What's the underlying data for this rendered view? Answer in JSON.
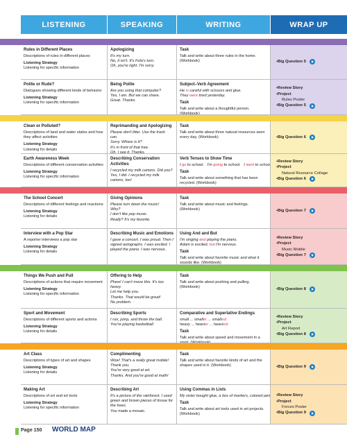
{
  "header": {
    "columns": [
      "LISTENING",
      "SPEAKING",
      "WRITING",
      "WRAP UP"
    ]
  },
  "units": [
    {
      "rows": [
        {
          "listening": {
            "title": "Rules in Different Places",
            "description": "Descriptions of rules in different places",
            "strategy_label": "Listening Strategy",
            "strategy": "Listening for specific information"
          },
          "speaking": {
            "title": "Apologizing",
            "lines": [
              "It's my turn.",
              "No, it isn't. It's Fola's turn.",
              "Oh, you're right. I'm sorry."
            ]
          },
          "writing": {
            "task_label": "Task",
            "task": "Talk and write about three rules in the home. (Workbook)"
          },
          "wrapup": {
            "big_question": "Big Question 5"
          }
        },
        {
          "listening": {
            "title": "Polite or Rude?",
            "description": "Dialogues showing different kinds of behavior",
            "strategy_label": "Listening Strategy",
            "strategy": "Listening for specific information"
          },
          "speaking": {
            "title": "Being Polite",
            "lines": [
              "Are you using that computer?",
              "Yes, I am. But we can share.",
              "Great. Thanks."
            ]
          },
          "writing": {
            "title": "Subject–Verb Agreement",
            "examples": [
              [
                "He ",
                "is",
                " careful with scissors and glue."
              ],
              [
                "They ",
                "were",
                " tired yesterday."
              ]
            ],
            "task_label": "Task",
            "task": "Talk and write about a thoughtful person. (Workbook)"
          },
          "wrapup": {
            "review": "Review Story",
            "project": "Project",
            "project_name": "Rules Poster",
            "big_question": "Big Question 5"
          }
        }
      ]
    },
    {
      "rows": [
        {
          "listening": {
            "title": "Clean or Polluted?",
            "description": "Descriptions of land and water states and how they affect activities",
            "strategy_label": "Listening Strategy",
            "strategy": "Listening for details"
          },
          "speaking": {
            "title": "Reprimanding and Apologizing",
            "lines": [
              "Please don't litter. Use the trash can.",
              "Sorry. Where is it?",
              "It's in front of that tree.",
              "Oh, I see it. Thanks."
            ]
          },
          "writing": {
            "task_label": "Task",
            "task": "Talk and write about three natural resources seen every day. (Workbook)"
          },
          "wrapup": {
            "big_question": "Big Question 6"
          }
        },
        {
          "listening": {
            "title": "Earth Awareness Week",
            "description": "Descriptions of different conservation activities",
            "strategy_label": "Listening Strategy",
            "strategy": "Listening for specific information"
          },
          "speaking": {
            "title": "Describing Conservation Activities",
            "lines": [
              "I recycled my milk cartons. Did you?",
              "Yes, I did. I recycled my milk cartons, too!"
            ]
          },
          "writing": {
            "title": "Verb Tenses to Show Time",
            "examples": [
              [
                "I ",
                "go",
                " to school.   I'm ",
                "going",
                " to school.   I ",
                "went",
                " to school."
              ]
            ],
            "task_label": "Task",
            "task": "Talk and write about something that has been recycled. (Workbook)"
          },
          "wrapup": {
            "review": "Review Story",
            "project": "Project",
            "project_name": "Natural Resource Collage",
            "big_question": "Big Question 6"
          }
        }
      ]
    },
    {
      "rows": [
        {
          "listening": {
            "title": "The School Concert",
            "description": "Descriptions of different feelings and reactions",
            "strategy_label": "Listening Strategy",
            "strategy": "Listening for details"
          },
          "speaking": {
            "title": "Giving Opinions",
            "lines": [
              "Please turn down the music!",
              "Why?",
              "I don't like pop music.",
              "Really? It's my favorite."
            ]
          },
          "writing": {
            "task_label": "Task",
            "task": "Talk and write about music and feelings. (Workbook)"
          },
          "wrapup": {
            "big_question": "Big Question 7"
          }
        },
        {
          "listening": {
            "title": "Interview with a Pop Star",
            "description": "A reporter interviews a pop star",
            "strategy_label": "Listening Strategy",
            "strategy": "Listening for details"
          },
          "speaking": {
            "title": "Describing Music and Emotions",
            "lines": [
              "I gave a concert. I was proud. Then I signed autographs. I was excited. I played the piano. I was nervous."
            ]
          },
          "writing": {
            "title": "Using And and But",
            "examples": [
              [
                "I'm singing ",
                "and",
                " playing the piano."
              ],
              [
                "Adam is excited, ",
                "but",
                " I'm nervous."
              ]
            ],
            "task_label": "Task",
            "task": "Talk and write about favorite music and what it sounds like. (Workbook)"
          },
          "wrapup": {
            "review": "Review Story",
            "project": "Project",
            "project_name": "Music Mobile",
            "big_question": "Big Question 7"
          }
        }
      ]
    },
    {
      "rows": [
        {
          "listening": {
            "title": "Things We Push and Pull",
            "description": "Descriptions of actions that require movement",
            "strategy_label": "Listening Strategy",
            "strategy": "Listening for specific information"
          },
          "speaking": {
            "title": "Offering to Help",
            "lines": [
              "Phew! I can't move this. It's too heavy.",
              "Let me help you.",
              "Thanks. That would be great!",
              "No problem."
            ]
          },
          "writing": {
            "task_label": "Task",
            "task": "Talk and write about pushing and pulling. (Workbook)"
          },
          "wrapup": {
            "big_question": "Big Question 8"
          }
        },
        {
          "listening": {
            "title": "Sport and Movement",
            "description": "Descriptions of different sports and actions",
            "strategy_label": "Listening Strategy",
            "strategy": "Listening for details"
          },
          "speaking": {
            "title": "Describing Sports",
            "lines": [
              "I run, jump, and throw the ball.",
              "You're playing basketball."
            ]
          },
          "writing": {
            "title": "Comparative and Superlative Endings",
            "examples": [
              [
                "small ... small",
                "er",
                " ... small",
                "est"
              ],
              [
                "heavy ... heavi",
                "er",
                " ... heavi",
                "est"
              ]
            ],
            "task_label": "Task",
            "task": "Talk and write about speed and movement in a sport. (Workbook)"
          },
          "wrapup": {
            "review": "Review Story",
            "project": "Project",
            "project_name": "Art Report",
            "big_question": "Big Question 8"
          }
        }
      ]
    },
    {
      "rows": [
        {
          "listening": {
            "title": "Art Class",
            "description": "Descriptions of types of art and shapes",
            "strategy_label": "Listening Strategy",
            "strategy": "Listening for details"
          },
          "speaking": {
            "title": "Complimenting",
            "lines": [
              "Wow! That's a really great mobile!",
              "Thank you.",
              "You're very good at art.",
              "Thanks. And you're good at math!"
            ]
          },
          "writing": {
            "task_label": "Task",
            "task": "Talk and write about favorite kinds of art and the shapes used in it. (Workbook)"
          },
          "wrapup": {
            "big_question": "Big Question 9"
          }
        },
        {
          "listening": {
            "title": "Making Art",
            "description": "Descriptions of art and art tools",
            "strategy_label": "Listening Strategy",
            "strategy": "Listening for specific information"
          },
          "speaking": {
            "title": "Describing Art",
            "lines": [
              "It's a picture of the rainforest. I used green and brown pieces of tissue for the trees.",
              "You made a mosaic."
            ]
          },
          "writing": {
            "title": "Using Commas in Lists",
            "examples": [
              [
                "My sister bought glue, a box of markers, colored pencils, scissors, and chalk."
              ]
            ],
            "task_label": "Task",
            "task": "Talk and write about art tools used in art projects. (Workbook)"
          },
          "wrapup": {
            "review": "Review Story",
            "project": "Project",
            "project_name": "Forces Poster",
            "big_question": "Big Question 9"
          }
        }
      ]
    }
  ],
  "footer": {
    "page": "Page 150",
    "title": "WORLD MAP"
  }
}
